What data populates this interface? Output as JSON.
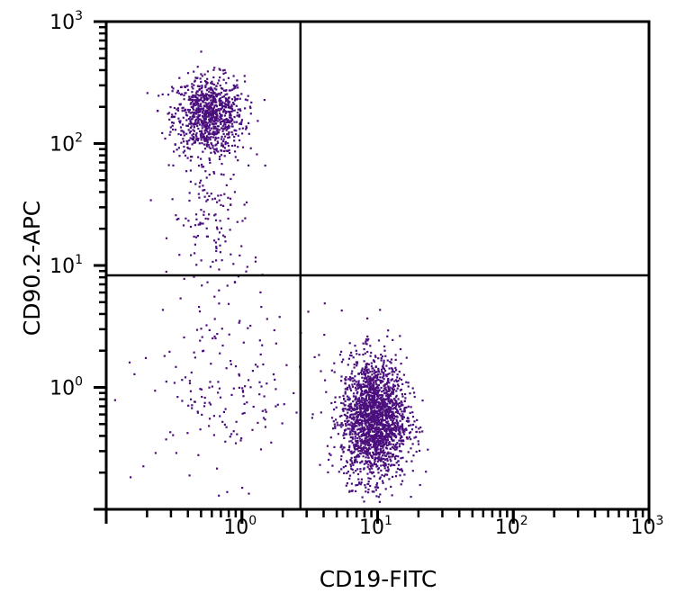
{
  "chart_data": {
    "type": "scatter",
    "title": "",
    "xlabel": "CD19-FITC",
    "ylabel": "CD90.2-APC",
    "xscale": "log",
    "yscale": "log",
    "xlim": [
      0.1,
      1000
    ],
    "ylim": [
      0.1,
      1000
    ],
    "x_ticks": [
      {
        "value": 1,
        "base": "10",
        "exp": "0"
      },
      {
        "value": 10,
        "base": "10",
        "exp": "1"
      },
      {
        "value": 100,
        "base": "10",
        "exp": "2"
      },
      {
        "value": 1000,
        "base": "10",
        "exp": "3"
      }
    ],
    "y_ticks": [
      {
        "value": 1,
        "base": "10",
        "exp": "0"
      },
      {
        "value": 10,
        "base": "10",
        "exp": "1"
      },
      {
        "value": 100,
        "base": "10",
        "exp": "2"
      },
      {
        "value": 1000,
        "base": "10",
        "exp": "3"
      }
    ],
    "grid": false,
    "legend": "none",
    "quadrant_gates": {
      "x": 2.7,
      "y": 8.3
    },
    "point_color": "#4b0f7d",
    "populations": [
      {
        "label": "CD90.2+ CD19- (upper left)",
        "x_center": 0.57,
        "y_center": 170,
        "x_sd_decades": 0.13,
        "y_sd_decades": 0.16,
        "count": 900
      },
      {
        "label": "CD90.2+ tail",
        "x_center": 0.6,
        "y_center": 25,
        "x_sd_decades": 0.15,
        "y_sd_decades": 0.35,
        "count": 160
      },
      {
        "label": "CD90.2- CD19+ (lower right)",
        "x_center": 9.4,
        "y_center": 0.55,
        "x_sd_decades": 0.12,
        "y_sd_decades": 0.25,
        "count": 2000
      },
      {
        "label": "double negative (lower left)",
        "x_center": 0.8,
        "y_center": 0.9,
        "x_sd_decades": 0.3,
        "y_sd_decades": 0.35,
        "count": 170
      }
    ]
  }
}
